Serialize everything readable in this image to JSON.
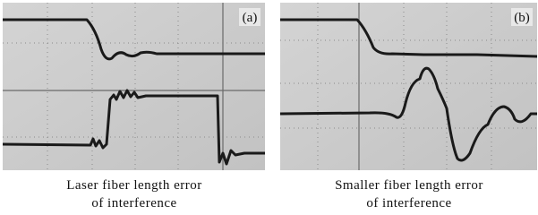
{
  "panels": [
    {
      "label": "(a)",
      "caption": [
        "Laser fiber length error",
        "of interference"
      ]
    },
    {
      "label": "(b)",
      "caption": [
        "Smaller fiber length error",
        "of interference"
      ]
    }
  ]
}
